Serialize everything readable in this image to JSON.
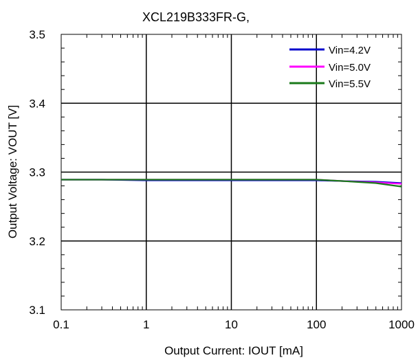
{
  "chart_data": {
    "type": "line",
    "title": "XCL219B333FR-G,",
    "xlabel": "Output Current: IOUT [mA]",
    "ylabel": "Output Voltage: VOUT [V]",
    "x_scale": "log",
    "xlim": [
      0.1,
      1000
    ],
    "ylim": [
      3.1,
      3.5
    ],
    "x_ticks": [
      "0.1",
      "1",
      "10",
      "100",
      "1000"
    ],
    "y_ticks": [
      "3.1",
      "3.2",
      "3.3",
      "3.4",
      "3.5"
    ],
    "grid": true,
    "legend_position": "top-right",
    "series": [
      {
        "name": "Vin=4.2V",
        "color": "#0000cc",
        "x": [
          0.1,
          0.3,
          1,
          10,
          100,
          200,
          500,
          1000
        ],
        "y": [
          3.289,
          3.289,
          3.288,
          3.288,
          3.288,
          3.287,
          3.286,
          3.284
        ]
      },
      {
        "name": "Vin=5.0V",
        "color": "#ff00ff",
        "x": [
          0.1,
          0.3,
          1,
          10,
          100,
          200,
          500,
          1000
        ],
        "y": [
          3.289,
          3.289,
          3.289,
          3.289,
          3.289,
          3.287,
          3.285,
          3.283
        ]
      },
      {
        "name": "Vin=5.5V",
        "color": "#1a7a1a",
        "x": [
          0.1,
          0.3,
          1,
          10,
          100,
          200,
          500,
          1000
        ],
        "y": [
          3.289,
          3.289,
          3.289,
          3.289,
          3.289,
          3.287,
          3.284,
          3.279
        ]
      }
    ]
  }
}
